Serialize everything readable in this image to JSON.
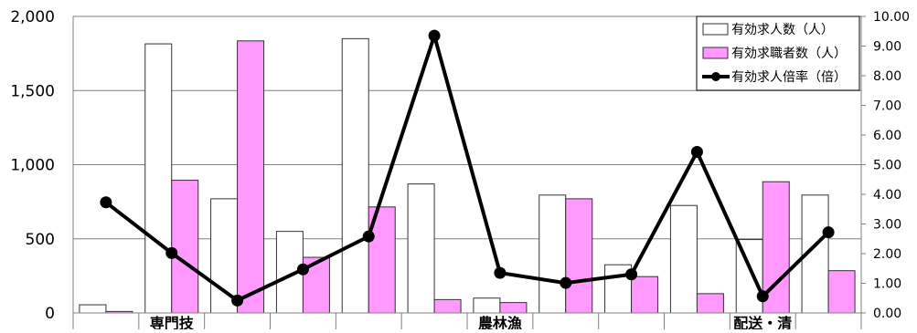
{
  "chart_data": {
    "type": "bar",
    "categories": [
      "",
      "専門技",
      "",
      "",
      "",
      "",
      "農林漁",
      "",
      "",
      "",
      "配送・清",
      ""
    ],
    "series": [
      {
        "name": "有効求人数（人）",
        "type": "bar",
        "axis": "left",
        "color": "#ffffff",
        "values": [
          55,
          1815,
          770,
          550,
          1850,
          870,
          100,
          795,
          325,
          725,
          495,
          795
        ]
      },
      {
        "name": "有効求職者数（人）",
        "type": "bar",
        "axis": "left",
        "color": "#ff99ff",
        "values": [
          10,
          895,
          1835,
          375,
          715,
          90,
          70,
          770,
          245,
          130,
          885,
          285
        ]
      },
      {
        "name": "有効求人倍率（倍）",
        "type": "line",
        "axis": "right",
        "color": "#000000",
        "values": [
          3.73,
          2.02,
          0.42,
          1.47,
          2.58,
          9.35,
          1.35,
          1.01,
          1.3,
          5.43,
          0.56,
          2.72
        ]
      }
    ],
    "y_left": {
      "min": 0,
      "max": 2000,
      "ticks": [
        "0",
        "500",
        "1,000",
        "1,500",
        "2,000"
      ]
    },
    "y_right": {
      "min": 0,
      "max": 10,
      "ticks": [
        "0.00",
        "1.00",
        "2.00",
        "3.00",
        "4.00",
        "5.00",
        "6.00",
        "7.00",
        "8.00",
        "9.00",
        "10.00"
      ]
    },
    "grid": true,
    "legend_position": "top-right"
  }
}
